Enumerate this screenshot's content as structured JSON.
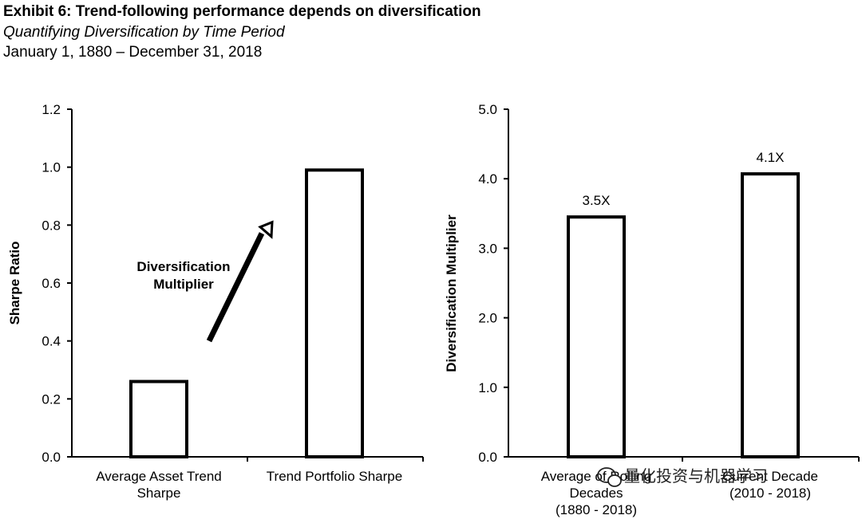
{
  "header": {
    "title": "Exhibit 6: Trend-following performance depends on diversification",
    "subtitle": "Quantifying Diversification by Time Period",
    "date_range": "January 1, 1880 – December 31, 2018"
  },
  "chart_data": [
    {
      "type": "bar",
      "ylabel": "Sharpe Ratio",
      "ylim": [
        0,
        1.2
      ],
      "yticks": [
        "0.0",
        "0.2",
        "0.4",
        "0.6",
        "0.8",
        "1.0",
        "1.2"
      ],
      "categories": [
        [
          "Average Asset Trend",
          "Sharpe"
        ],
        [
          "Trend Portfolio Sharpe"
        ]
      ],
      "values": [
        0.26,
        0.99
      ],
      "annotation": [
        "Diversification",
        "Multiplier"
      ],
      "grid": false
    },
    {
      "type": "bar",
      "ylabel": "Diversification Multiplier",
      "ylim": [
        0,
        5
      ],
      "yticks": [
        "0.0",
        "1.0",
        "2.0",
        "3.0",
        "4.0",
        "5.0"
      ],
      "categories": [
        [
          "Average of Rolling",
          "Decades",
          "(1880 - 2018)"
        ],
        [
          "Current Decade",
          "(2010 - 2018)"
        ]
      ],
      "values": [
        3.45,
        4.07
      ],
      "data_labels": [
        "3.5X",
        "4.1X"
      ],
      "grid": false
    }
  ],
  "watermark": "量化投资与机器学习"
}
